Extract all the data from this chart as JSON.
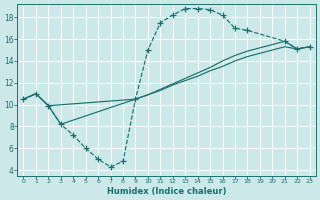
{
  "background_color": "#cce8e8",
  "grid_color": "#ffffff",
  "line_color": "#1a7070",
  "xlabel": "Humidex (Indice chaleur)",
  "xlim": [
    -0.5,
    23.5
  ],
  "ylim": [
    3.5,
    19.2
  ],
  "xticks": [
    0,
    1,
    2,
    3,
    4,
    5,
    6,
    7,
    8,
    9,
    10,
    11,
    12,
    13,
    14,
    15,
    16,
    17,
    18,
    19,
    20,
    21,
    22,
    23
  ],
  "yticks": [
    4,
    6,
    8,
    10,
    12,
    14,
    16,
    18
  ],
  "dashed_x": [
    0,
    1,
    2,
    3,
    4,
    5,
    6,
    7,
    8,
    9,
    10,
    11,
    12,
    13,
    14,
    15,
    16,
    17,
    18,
    21,
    22,
    23
  ],
  "dashed_y": [
    10.5,
    11.0,
    9.9,
    8.2,
    7.2,
    6.0,
    5.0,
    4.3,
    4.8,
    10.5,
    15.0,
    17.5,
    18.2,
    18.8,
    18.8,
    18.7,
    18.2,
    17.0,
    16.8,
    15.8,
    15.1,
    15.3
  ],
  "line1_x": [
    0,
    1,
    2,
    9,
    10,
    11,
    12,
    13,
    14,
    15,
    16,
    17,
    18,
    21,
    22,
    23
  ],
  "line1_y": [
    10.5,
    11.0,
    9.9,
    10.5,
    10.9,
    11.3,
    11.8,
    12.2,
    12.6,
    13.1,
    13.5,
    14.0,
    14.4,
    15.3,
    15.1,
    15.3
  ],
  "line2_x": [
    0,
    1,
    2,
    3,
    9,
    10,
    11,
    12,
    13,
    14,
    15,
    16,
    17,
    18,
    21,
    22,
    23
  ],
  "line2_y": [
    10.5,
    11.0,
    9.9,
    8.2,
    10.5,
    10.9,
    11.4,
    11.9,
    12.4,
    12.9,
    13.4,
    14.0,
    14.5,
    14.9,
    15.8,
    15.1,
    15.3
  ]
}
